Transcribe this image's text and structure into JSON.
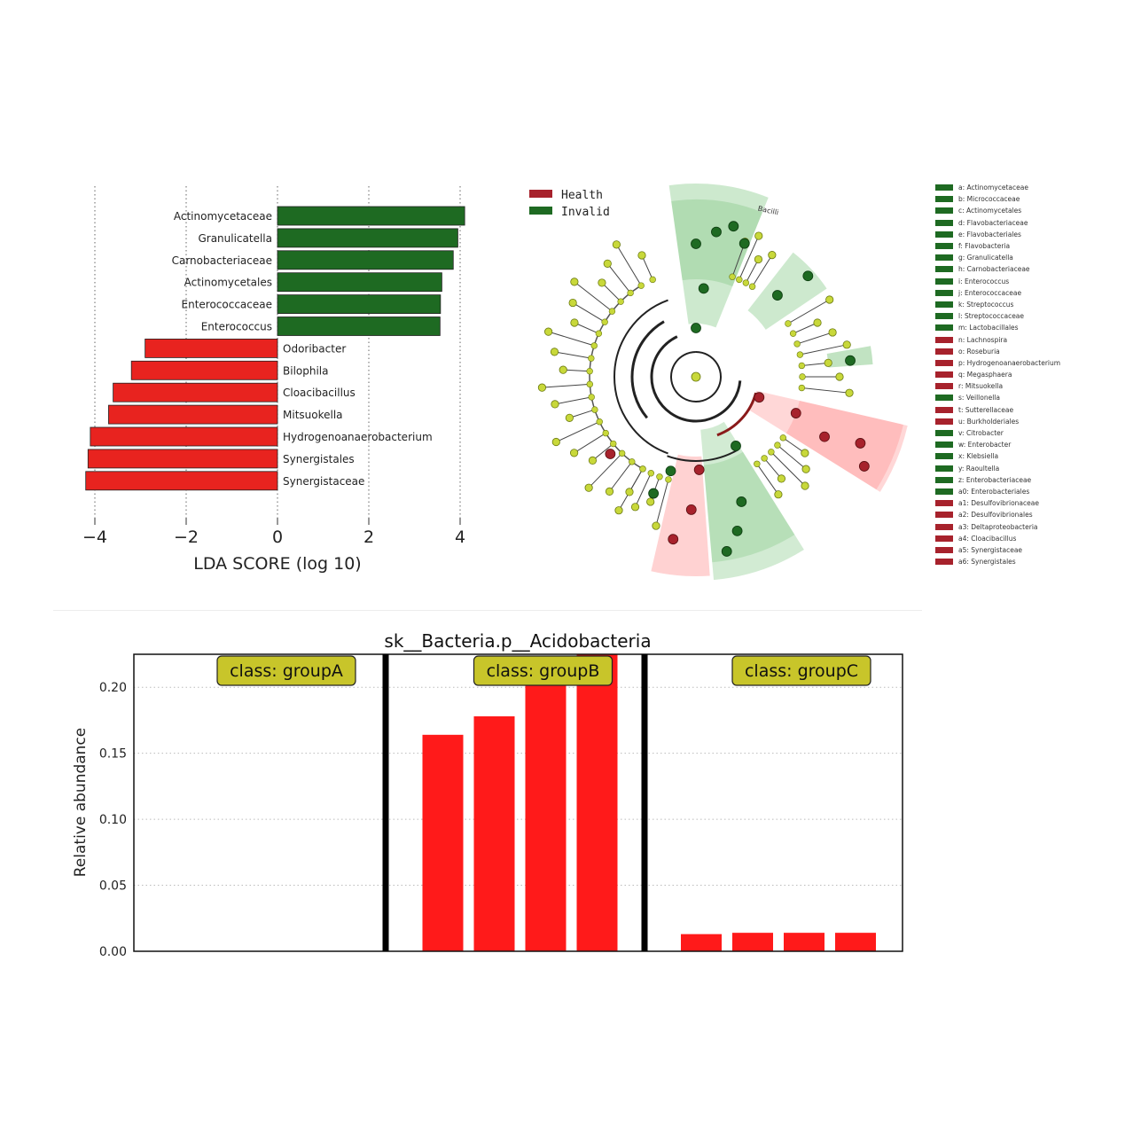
{
  "colors": {
    "health": "#a7222c",
    "invalid": "#1e6a22",
    "bar_green": "#1e6a22",
    "bar_red": "#e8231f",
    "abundance_bar": "#ff1a1a",
    "class_box_fill": "#c8c52a",
    "node_yellow": "#c8d83a"
  },
  "lda_chart": {
    "chart_data": {
      "type": "bar",
      "orientation": "horizontal",
      "xlabel": "LDA SCORE (log 10)",
      "xlim": [
        -4.2,
        4.3
      ],
      "xticks": [
        -4,
        -2,
        0,
        2,
        4
      ],
      "xtick_labels": [
        "−4",
        "−2",
        "0",
        "2",
        "4"
      ],
      "grid": "vertical dotted",
      "categories": [
        "Actinomycetaceae",
        "Granulicatella",
        "Carnobacteriaceae",
        "Actinomycetales",
        "Enterococcaceae",
        "Enterococcus",
        "Odoribacter",
        "Bilophila",
        "Cloacibacillus",
        "Mitsuokella",
        "Hydrogenoanaerobacterium",
        "Synergistales",
        "Synergistaceae"
      ],
      "values": [
        4.1,
        3.95,
        3.85,
        3.6,
        3.57,
        3.56,
        -2.9,
        -3.2,
        -3.6,
        -3.7,
        -4.1,
        -4.15,
        -4.2
      ],
      "groups": [
        "Invalid",
        "Invalid",
        "Invalid",
        "Invalid",
        "Invalid",
        "Invalid",
        "Health",
        "Health",
        "Health",
        "Health",
        "Health",
        "Health",
        "Health"
      ]
    }
  },
  "cladogram": {
    "legend": [
      {
        "label": "Health",
        "color": "#a7222c"
      },
      {
        "label": "Invalid",
        "color": "#1e6a22"
      }
    ],
    "sector_label": "Bacilli",
    "items": [
      {
        "label": "a: Actinomycetaceae",
        "group": "Invalid"
      },
      {
        "label": "b: Micrococcaceae",
        "group": "Invalid"
      },
      {
        "label": "c: Actinomycetales",
        "group": "Invalid"
      },
      {
        "label": "d: Flavobacteriaceae",
        "group": "Invalid"
      },
      {
        "label": "e: Flavobacteriales",
        "group": "Invalid"
      },
      {
        "label": "f: Flavobacteria",
        "group": "Invalid"
      },
      {
        "label": "g: Granulicatella",
        "group": "Invalid"
      },
      {
        "label": "h: Carnobacteriaceae",
        "group": "Invalid"
      },
      {
        "label": "i: Enterococcus",
        "group": "Invalid"
      },
      {
        "label": "j: Enterococcaceae",
        "group": "Invalid"
      },
      {
        "label": "k: Streptococcus",
        "group": "Invalid"
      },
      {
        "label": "l: Streptococcaceae",
        "group": "Invalid"
      },
      {
        "label": "m: Lactobacillales",
        "group": "Invalid"
      },
      {
        "label": "n: Lachnospira",
        "group": "Health"
      },
      {
        "label": "o: Roseburia",
        "group": "Health"
      },
      {
        "label": "p: Hydrogenoanaerobacterium",
        "group": "Health"
      },
      {
        "label": "q: Megasphaera",
        "group": "Health"
      },
      {
        "label": "r: Mitsuokella",
        "group": "Health"
      },
      {
        "label": "s: Veillonella",
        "group": "Invalid"
      },
      {
        "label": "t: Sutterellaceae",
        "group": "Health"
      },
      {
        "label": "u: Burkholderiales",
        "group": "Health"
      },
      {
        "label": "v: Citrobacter",
        "group": "Invalid"
      },
      {
        "label": "w: Enterobacter",
        "group": "Invalid"
      },
      {
        "label": "x: Klebsiella",
        "group": "Invalid"
      },
      {
        "label": "y: Raoultella",
        "group": "Invalid"
      },
      {
        "label": "z: Enterobacteriaceae",
        "group": "Invalid"
      },
      {
        "label": "a0: Enterobacteriales",
        "group": "Invalid"
      },
      {
        "label": "a1: Desulfovibrionaceae",
        "group": "Health"
      },
      {
        "label": "a2: Desulfovibrionales",
        "group": "Health"
      },
      {
        "label": "a3: Deltaproteobacteria",
        "group": "Health"
      },
      {
        "label": "a4: Cloacibacillus",
        "group": "Health"
      },
      {
        "label": "a5: Synergistaceae",
        "group": "Health"
      },
      {
        "label": "a6: Synergistales",
        "group": "Health"
      }
    ]
  },
  "abundance_chart": {
    "chart_data": {
      "type": "bar",
      "title": "sk__Bacteria.p__Acidobacteria",
      "ylabel": "Relative abundance",
      "ylim": [
        0,
        0.225
      ],
      "yticks": [
        0.0,
        0.05,
        0.1,
        0.15,
        0.2
      ],
      "ytick_labels": [
        "0.00",
        "0.05",
        "0.10",
        "0.15",
        "0.20"
      ],
      "grid": "horizontal dotted",
      "panels": [
        {
          "label": "class: groupA",
          "values": [
            0,
            0,
            0,
            0
          ]
        },
        {
          "label": "class: groupB",
          "values": [
            0.164,
            0.178,
            0.21,
            0.23
          ]
        },
        {
          "label": "class: groupC",
          "values": [
            0.013,
            0.014,
            0.014,
            0.014
          ]
        }
      ]
    }
  }
}
